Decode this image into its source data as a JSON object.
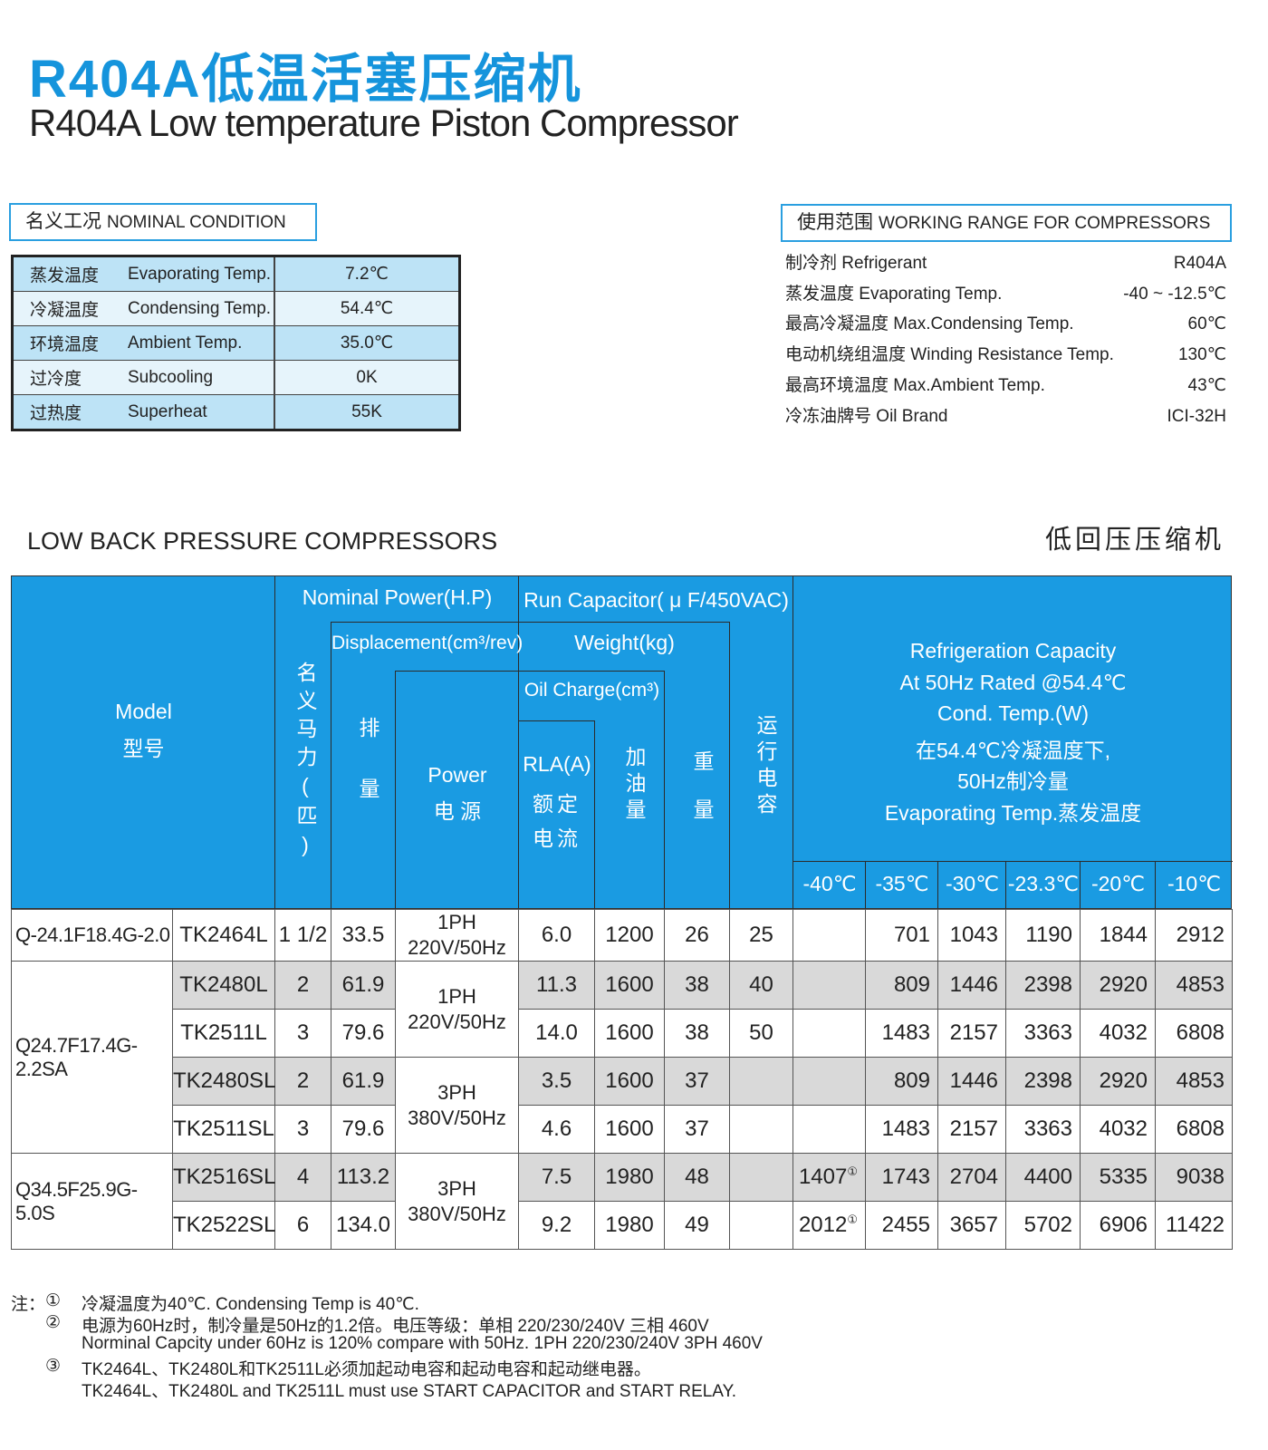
{
  "header": {
    "title_cn": "R404A低温活塞压缩机",
    "title_en": "R404A Low temperature Piston Compressor"
  },
  "nominal": {
    "heading_cn": "名义工况",
    "heading_en": "NOMINAL CONDITION",
    "rows": [
      [
        "蒸发温度",
        "Evaporating Temp.",
        "7.2℃"
      ],
      [
        "冷凝温度",
        "Condensing Temp.",
        "54.4℃"
      ],
      [
        "环境温度",
        "Ambient Temp.",
        "35.0℃"
      ],
      [
        "过冷度",
        "Subcooling",
        "0K"
      ],
      [
        "过热度",
        "Superheat",
        "55K"
      ]
    ]
  },
  "working_range": {
    "heading_cn": "使用范围",
    "heading_en": "WORKING RANGE FOR COMPRESSORS",
    "rows": [
      [
        "制冷剂",
        "Refrigerant",
        "R404A"
      ],
      [
        "蒸发温度",
        "Evaporating Temp.",
        "-40 ~ -12.5℃"
      ],
      [
        "最高冷凝温度",
        "Max.Condensing Temp.",
        "60℃"
      ],
      [
        "电动机绕组温度",
        "Winding Resistance Temp.",
        "130℃"
      ],
      [
        "最高环境温度",
        "Max.Ambient Temp.",
        "43℃"
      ],
      [
        "冷冻油牌号",
        "Oil Brand",
        "ICI-32H"
      ]
    ]
  },
  "table": {
    "title_en": "LOW BACK PRESSURE COMPRESSORS",
    "title_cn": "低回压压缩机",
    "head": {
      "model": "Model",
      "model_cn": "型号",
      "hp_cn": "名义马力(匹)",
      "nominal_power": "Nominal Power(H.P)",
      "displacement": "Displacement(cm³/rev)",
      "displacement_cn": "排量",
      "power": "Power",
      "power_cn": "电 源",
      "run_capacitor": "Run Capacitor( μ F/450VAC)",
      "weight": "Weight(kg)",
      "oil_charge": "Oil Charge(cm³)",
      "rla": "RLA(A)",
      "rla_cn_1": "额定",
      "rla_cn_2": "电流",
      "oil_cn": "加油量",
      "weight_cn": "重量",
      "capacitor_cn": "运行电容",
      "capacity_lines": [
        "Refrigeration Capacity",
        "At 50Hz Rated @54.4℃",
        "Cond. Temp.(W)",
        "在54.4℃冷凝温度下,",
        "50Hz制冷量",
        "Evaporating Temp.蒸发温度"
      ],
      "temps": [
        "-40℃",
        "-35℃",
        "-30℃",
        "-23.3℃",
        "-20℃",
        "-10℃"
      ]
    },
    "groups": [
      {
        "series": "Q-24.1F18.4G-2.0",
        "blocks": [
          {
            "power": [
              "1PH",
              "220V/50Hz"
            ],
            "rows": [
              {
                "model": "TK2464L",
                "hp": "1 1/2",
                "displacement": "33.5",
                "rla": "6.0",
                "oil": "1200",
                "weight": "26",
                "capacitor": "25",
                "capacity": [
                  null,
                  "701",
                  "1043",
                  "1190",
                  "1844",
                  "2912"
                ]
              }
            ]
          }
        ]
      },
      {
        "series": "Q24.7F17.4G-2.2SA",
        "blocks": [
          {
            "power": [
              "1PH",
              "220V/50Hz"
            ],
            "rows": [
              {
                "model": "TK2480L",
                "hp": "2",
                "displacement": "61.9",
                "rla": "11.3",
                "oil": "1600",
                "weight": "38",
                "capacitor": "40",
                "capacity": [
                  null,
                  "809",
                  "1446",
                  "2398",
                  "2920",
                  "4853"
                ]
              },
              {
                "model": "TK2511L",
                "hp": "3",
                "displacement": "79.6",
                "rla": "14.0",
                "oil": "1600",
                "weight": "38",
                "capacitor": "50",
                "capacity": [
                  null,
                  "1483",
                  "2157",
                  "3363",
                  "4032",
                  "6808"
                ]
              }
            ]
          },
          {
            "power": [
              "3PH",
              "380V/50Hz"
            ],
            "rows": [
              {
                "model": "TK2480SL",
                "hp": "2",
                "displacement": "61.9",
                "rla": "3.5",
                "oil": "1600",
                "weight": "37",
                "capacitor": null,
                "capacity": [
                  null,
                  "809",
                  "1446",
                  "2398",
                  "2920",
                  "4853"
                ]
              },
              {
                "model": "TK2511SL",
                "hp": "3",
                "displacement": "79.6",
                "rla": "4.6",
                "oil": "1600",
                "weight": "37",
                "capacitor": null,
                "capacity": [
                  null,
                  "1483",
                  "2157",
                  "3363",
                  "4032",
                  "6808"
                ]
              }
            ]
          }
        ]
      },
      {
        "series": "Q34.5F25.9G-5.0S",
        "blocks": [
          {
            "power": [
              "3PH",
              "380V/50Hz"
            ],
            "rows": [
              {
                "model": "TK2516SL",
                "hp": "4",
                "displacement": "113.2",
                "rla": "7.5",
                "oil": "1980",
                "weight": "48",
                "capacitor": null,
                "capacity": [
                  "1407",
                  "1743",
                  "2704",
                  "4400",
                  "5335",
                  "9038"
                ],
                "note_mark": "①"
              },
              {
                "model": "TK2522SL",
                "hp": "6",
                "displacement": "134.0",
                "rla": "9.2",
                "oil": "1980",
                "weight": "49",
                "capacitor": null,
                "capacity": [
                  "2012",
                  "2455",
                  "3657",
                  "5702",
                  "6906",
                  "11422"
                ],
                "note_mark": "①"
              }
            ]
          }
        ]
      }
    ]
  },
  "notes": {
    "label": "注：",
    "items": [
      {
        "mark": "①",
        "lines": [
          "冷凝温度为40℃.    Condensing Temp is 40℃."
        ]
      },
      {
        "mark": "②",
        "lines": [
          "电源为60Hz时，制冷量是50Hz的1.2倍。电压等级：单相  220/230/240V  三相  460V",
          "Norminal Capcity under 60Hz is 120% compare with 50Hz.   1PH 220/230/240V    3PH 460V"
        ]
      },
      {
        "mark": "③",
        "lines": [
          "TK2464L、TK2480L和TK2511L必须加起动电容和起动电容和起动继电器。",
          "TK2464L、TK2480L and TK2511L must use START CAPACITOR and START RELAY."
        ]
      }
    ]
  }
}
